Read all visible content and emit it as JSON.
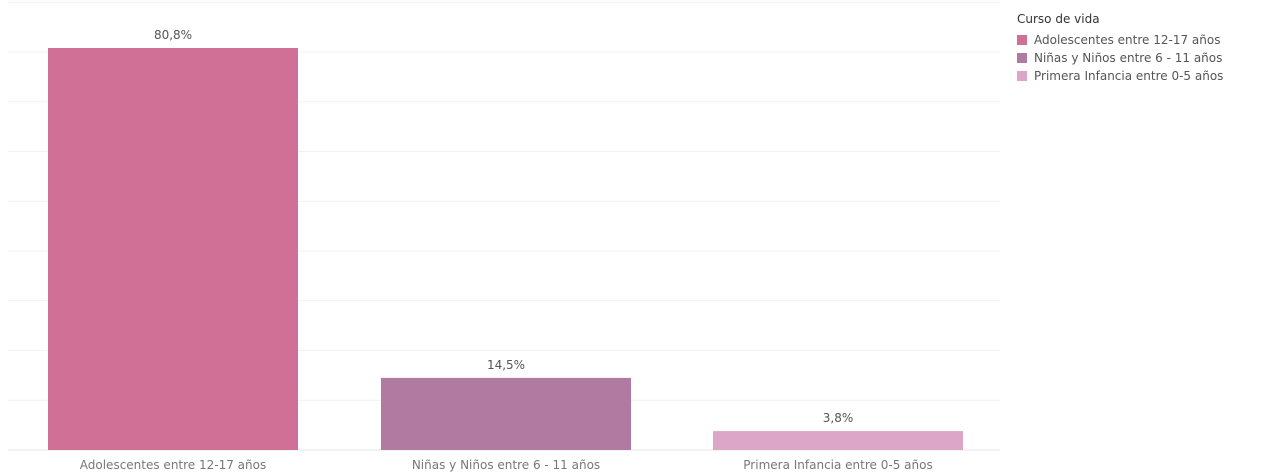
{
  "chart_data": {
    "type": "bar",
    "categories": [
      "Adolescentes entre 12-17 años",
      "Niñas y Niños entre 6 - 11 años",
      "Primera Infancia entre 0-5 años"
    ],
    "values": [
      80.8,
      14.5,
      3.8
    ],
    "value_labels": [
      "80,8%",
      "14,5%",
      "3,8%"
    ],
    "colors": [
      "#d07096",
      "#b07aa1",
      "#dba6c8"
    ],
    "ylim": [
      0,
      90
    ],
    "grid": true,
    "legend": {
      "title": "Curso de vida",
      "placement": "top-right"
    }
  }
}
